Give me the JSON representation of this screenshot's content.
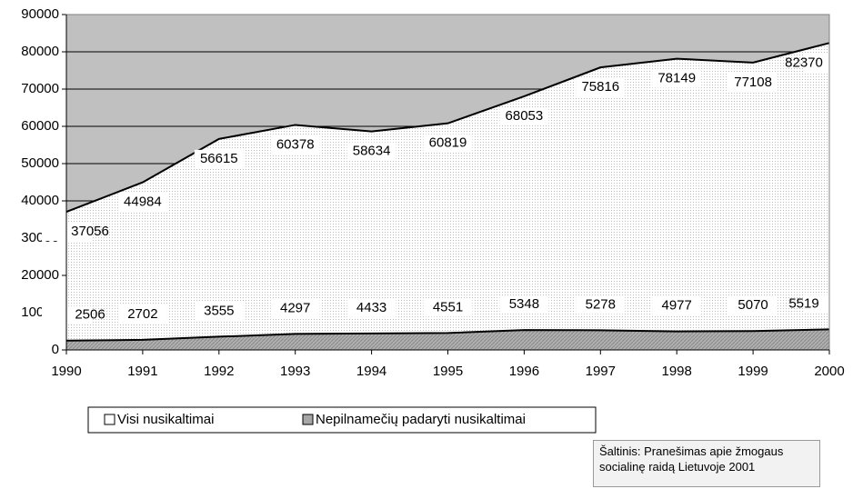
{
  "chart_data": {
    "type": "area",
    "x": [
      1990,
      1991,
      1992,
      1993,
      1994,
      1995,
      1996,
      1997,
      1998,
      1999,
      2000
    ],
    "xlim": [
      1990,
      2000
    ],
    "xticks": [
      1990,
      1991,
      1992,
      1993,
      1994,
      1995,
      1996,
      1997,
      1998,
      1999,
      2000
    ],
    "ylim": [
      0,
      90000
    ],
    "yticks": [
      0,
      10000,
      20000,
      30000,
      40000,
      50000,
      60000,
      70000,
      80000,
      90000
    ],
    "grid": true,
    "background": "#c0c0c0",
    "series": [
      {
        "name": "Visi nusikaltimai",
        "color": "#ffffff",
        "values": [
          37056,
          44984,
          56615,
          60378,
          58634,
          60819,
          68053,
          75816,
          78149,
          77108,
          82370
        ]
      },
      {
        "name": "Nepilnamečių padaryti nusikaltimai",
        "color": "#a6a6a6",
        "values": [
          2506,
          2702,
          3555,
          4297,
          4433,
          4551,
          5348,
          5278,
          4977,
          5070,
          5519
        ]
      }
    ],
    "source": "Šaltinis: Pranešimas apie žmogaus socialinę raidą Lietuvoje 2001"
  }
}
